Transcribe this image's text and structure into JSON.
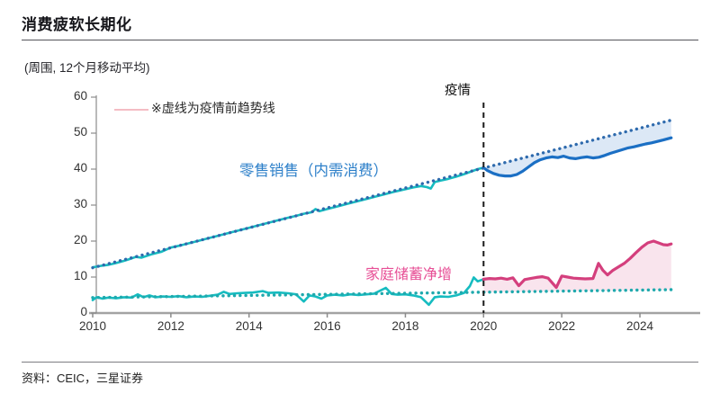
{
  "title": "消费疲软长期化",
  "subtitle": "(周围, 12个月移动平均)",
  "annotations": {
    "trend_note": "※虚线为疫情前趋势线",
    "pandemic_label": "疫情",
    "retail_label": "零售销售（内需消费）",
    "savings_label": "家庭储蓄净增"
  },
  "source": "资料：CEIC，三星证券",
  "colors": {
    "teal_line": "#16bcc0",
    "blue_line": "#1b6fc4",
    "pink_line": "#d43f7d",
    "blue_trend_dots": "#2e6aad",
    "teal_trend_dots": "#1fa9ad",
    "blue_fill": "#dce8f6",
    "pink_fill": "#f9e4ed",
    "axis": "#a3a3a3",
    "pandemic_dash": "#1a1a1a",
    "retail_label_text": "#2c7fc9",
    "savings_label_text": "#e74f96",
    "note_swatch": "#f4bcc4"
  },
  "chart_data": {
    "type": "line",
    "title": "消费疲软长期化",
    "unit_label": "(周围, 12个月移动平均)",
    "xlabel": "",
    "ylabel": "",
    "xlim": [
      2009.9,
      2025.4
    ],
    "ylim": [
      0,
      60
    ],
    "grid": false,
    "x_ticks": [
      2010,
      2012,
      2014,
      2016,
      2018,
      2020,
      2022,
      2024
    ],
    "y_ticks": [
      0,
      10,
      20,
      30,
      40,
      50,
      60
    ],
    "pandemic_x": 2020.0,
    "axis_color": "#a3a3a3",
    "fills": [
      {
        "between": [
          "retail_trend",
          "retail_post"
        ],
        "from": 2020.0,
        "to": 2024.8,
        "color": "#dce8f6"
      },
      {
        "between": [
          "savings_post",
          "savings_trend"
        ],
        "from": 2020.0,
        "to": 2024.8,
        "color": "#f9e4ed"
      }
    ],
    "series": [
      {
        "id": "retail_pre",
        "name": "零售销售（内需消费）疫情前",
        "color": "#16bcc0",
        "style": "solid",
        "width": 2.6,
        "points": [
          [
            2010.0,
            12.7
          ],
          [
            2010.2,
            13.1
          ],
          [
            2010.4,
            13.4
          ],
          [
            2010.6,
            13.9
          ],
          [
            2010.8,
            14.5
          ],
          [
            2011.0,
            15.2
          ],
          [
            2011.1,
            15.6
          ],
          [
            2011.25,
            15.4
          ],
          [
            2011.5,
            16.3
          ],
          [
            2011.75,
            17.0
          ],
          [
            2012.0,
            18.2
          ],
          [
            2012.25,
            18.8
          ],
          [
            2012.5,
            19.5
          ],
          [
            2012.75,
            20.2
          ],
          [
            2013.0,
            20.9
          ],
          [
            2013.25,
            21.6
          ],
          [
            2013.5,
            22.3
          ],
          [
            2013.75,
            23.0
          ],
          [
            2014.0,
            23.7
          ],
          [
            2014.25,
            24.4
          ],
          [
            2014.5,
            25.1
          ],
          [
            2014.75,
            25.8
          ],
          [
            2015.0,
            26.5
          ],
          [
            2015.2,
            27.0
          ],
          [
            2015.4,
            27.6
          ],
          [
            2015.6,
            28.0
          ],
          [
            2015.7,
            28.9
          ],
          [
            2015.8,
            28.3
          ],
          [
            2016.0,
            28.9
          ],
          [
            2016.25,
            29.6
          ],
          [
            2016.5,
            30.3
          ],
          [
            2016.75,
            31.0
          ],
          [
            2017.0,
            31.7
          ],
          [
            2017.25,
            32.4
          ],
          [
            2017.5,
            33.1
          ],
          [
            2017.75,
            33.8
          ],
          [
            2018.0,
            34.4
          ],
          [
            2018.2,
            34.9
          ],
          [
            2018.4,
            35.3
          ],
          [
            2018.55,
            35.0
          ],
          [
            2018.65,
            34.6
          ],
          [
            2018.75,
            36.4
          ],
          [
            2018.9,
            36.8
          ],
          [
            2019.1,
            37.3
          ],
          [
            2019.3,
            37.9
          ],
          [
            2019.5,
            38.6
          ],
          [
            2019.7,
            39.4
          ],
          [
            2019.85,
            40.0
          ],
          [
            2020.0,
            40.4
          ]
        ]
      },
      {
        "id": "savings_pre",
        "name": "家庭储蓄净增 疫情前",
        "color": "#16bcc0",
        "style": "solid",
        "width": 2.6,
        "points": [
          [
            2010.0,
            3.6
          ],
          [
            2010.1,
            4.4
          ],
          [
            2010.25,
            4.0
          ],
          [
            2010.4,
            4.3
          ],
          [
            2010.6,
            4.1
          ],
          [
            2010.8,
            4.4
          ],
          [
            2011.0,
            4.3
          ],
          [
            2011.15,
            5.2
          ],
          [
            2011.3,
            4.4
          ],
          [
            2011.45,
            4.9
          ],
          [
            2011.6,
            4.4
          ],
          [
            2011.8,
            4.6
          ],
          [
            2012.0,
            4.5
          ],
          [
            2012.2,
            4.7
          ],
          [
            2012.4,
            4.4
          ],
          [
            2012.6,
            4.6
          ],
          [
            2012.8,
            4.5
          ],
          [
            2013.0,
            4.8
          ],
          [
            2013.2,
            5.1
          ],
          [
            2013.35,
            5.9
          ],
          [
            2013.5,
            5.3
          ],
          [
            2013.7,
            5.5
          ],
          [
            2013.9,
            5.6
          ],
          [
            2014.1,
            5.7
          ],
          [
            2014.35,
            6.1
          ],
          [
            2014.5,
            5.6
          ],
          [
            2014.75,
            5.7
          ],
          [
            2015.0,
            5.5
          ],
          [
            2015.2,
            5.2
          ],
          [
            2015.4,
            3.2
          ],
          [
            2015.55,
            4.9
          ],
          [
            2015.7,
            4.6
          ],
          [
            2015.85,
            4.0
          ],
          [
            2016.0,
            4.9
          ],
          [
            2016.2,
            5.1
          ],
          [
            2016.4,
            4.9
          ],
          [
            2016.6,
            5.2
          ],
          [
            2016.8,
            5.0
          ],
          [
            2017.0,
            5.2
          ],
          [
            2017.2,
            5.4
          ],
          [
            2017.5,
            7.0
          ],
          [
            2017.65,
            5.3
          ],
          [
            2017.8,
            5.1
          ],
          [
            2018.0,
            5.2
          ],
          [
            2018.2,
            4.9
          ],
          [
            2018.4,
            4.4
          ],
          [
            2018.6,
            2.3
          ],
          [
            2018.75,
            4.4
          ],
          [
            2018.9,
            4.6
          ],
          [
            2019.1,
            4.5
          ],
          [
            2019.3,
            4.9
          ],
          [
            2019.5,
            5.6
          ],
          [
            2019.65,
            7.5
          ],
          [
            2019.75,
            9.9
          ],
          [
            2019.85,
            8.8
          ],
          [
            2020.0,
            9.4
          ]
        ]
      },
      {
        "id": "retail_trend",
        "name": "疫情前趋势线（零售销售）",
        "color": "#2e6aad",
        "style": "dotted",
        "width": 3.4,
        "points": [
          [
            2010.0,
            12.6
          ],
          [
            2020.0,
            40.3
          ],
          [
            2024.8,
            53.6
          ]
        ]
      },
      {
        "id": "savings_trend",
        "name": "疫情前趋势线（家庭储蓄净增）",
        "color": "#1fa9ad",
        "style": "dotted",
        "width": 3.4,
        "points": [
          [
            2010.0,
            4.3
          ],
          [
            2020.0,
            5.8
          ],
          [
            2024.8,
            6.5
          ]
        ]
      },
      {
        "id": "retail_post",
        "name": "零售销售（内需消费）疫情后",
        "color": "#1b6fc4",
        "style": "solid",
        "width": 3.2,
        "points": [
          [
            2020.0,
            40.4
          ],
          [
            2020.1,
            39.6
          ],
          [
            2020.25,
            38.8
          ],
          [
            2020.4,
            38.3
          ],
          [
            2020.55,
            38.1
          ],
          [
            2020.7,
            38.1
          ],
          [
            2020.85,
            38.5
          ],
          [
            2021.0,
            39.4
          ],
          [
            2021.15,
            40.6
          ],
          [
            2021.3,
            41.8
          ],
          [
            2021.45,
            42.6
          ],
          [
            2021.6,
            43.1
          ],
          [
            2021.75,
            43.4
          ],
          [
            2021.9,
            43.2
          ],
          [
            2022.05,
            43.6
          ],
          [
            2022.2,
            43.1
          ],
          [
            2022.35,
            42.9
          ],
          [
            2022.5,
            43.2
          ],
          [
            2022.65,
            43.4
          ],
          [
            2022.8,
            43.1
          ],
          [
            2022.95,
            43.3
          ],
          [
            2023.1,
            43.8
          ],
          [
            2023.25,
            44.4
          ],
          [
            2023.4,
            44.9
          ],
          [
            2023.55,
            45.4
          ],
          [
            2023.7,
            45.9
          ],
          [
            2023.85,
            46.2
          ],
          [
            2024.0,
            46.6
          ],
          [
            2024.15,
            47.0
          ],
          [
            2024.3,
            47.3
          ],
          [
            2024.45,
            47.7
          ],
          [
            2024.6,
            48.1
          ],
          [
            2024.8,
            48.7
          ]
        ]
      },
      {
        "id": "savings_post",
        "name": "家庭储蓄净增 疫情后",
        "color": "#d43f7d",
        "style": "solid",
        "width": 3.2,
        "points": [
          [
            2020.0,
            9.4
          ],
          [
            2020.15,
            9.6
          ],
          [
            2020.3,
            9.5
          ],
          [
            2020.45,
            9.7
          ],
          [
            2020.6,
            9.4
          ],
          [
            2020.75,
            9.8
          ],
          [
            2020.9,
            7.6
          ],
          [
            2021.05,
            9.3
          ],
          [
            2021.2,
            9.6
          ],
          [
            2021.35,
            9.9
          ],
          [
            2021.5,
            10.1
          ],
          [
            2021.65,
            9.7
          ],
          [
            2021.86,
            7.1
          ],
          [
            2022.0,
            10.3
          ],
          [
            2022.15,
            10.0
          ],
          [
            2022.3,
            9.7
          ],
          [
            2022.45,
            9.6
          ],
          [
            2022.6,
            9.5
          ],
          [
            2022.8,
            9.6
          ],
          [
            2022.94,
            13.8
          ],
          [
            2023.05,
            11.9
          ],
          [
            2023.17,
            10.6
          ],
          [
            2023.3,
            11.8
          ],
          [
            2023.45,
            12.8
          ],
          [
            2023.6,
            13.8
          ],
          [
            2023.75,
            15.2
          ],
          [
            2023.9,
            16.8
          ],
          [
            2024.05,
            18.3
          ],
          [
            2024.2,
            19.5
          ],
          [
            2024.35,
            20.0
          ],
          [
            2024.5,
            19.4
          ],
          [
            2024.6,
            19.0
          ],
          [
            2024.7,
            18.9
          ],
          [
            2024.8,
            19.2
          ]
        ]
      }
    ],
    "legend_position": "none"
  }
}
